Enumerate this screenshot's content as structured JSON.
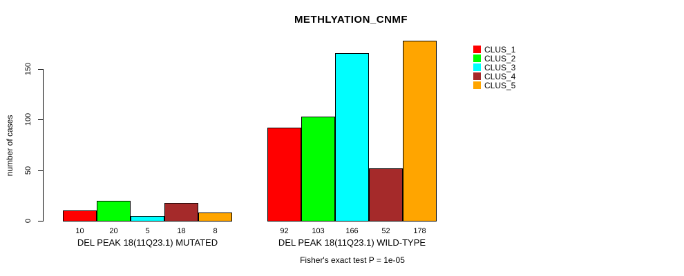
{
  "chart_data": {
    "type": "bar",
    "title": "METHLYATION_CNMF",
    "ylabel": "number of cases",
    "xlabel": "",
    "ylim": [
      0,
      178
    ],
    "yticks": [
      0,
      50,
      100,
      150
    ],
    "grid": false,
    "legend_position": "right",
    "series_names": [
      "CLUS_1",
      "CLUS_2",
      "CLUS_3",
      "CLUS_4",
      "CLUS_5"
    ],
    "series_colors": [
      "#FF0000",
      "#00FF00",
      "#00FFFF",
      "#A52A2A",
      "#FFA500"
    ],
    "groups": [
      {
        "label": "DEL PEAK 18(11Q23.1) MUTATED",
        "values": [
          10,
          20,
          5,
          18,
          8
        ]
      },
      {
        "label": "DEL PEAK 18(11Q23.1) WILD-TYPE",
        "values": [
          92,
          103,
          166,
          52,
          178
        ]
      }
    ],
    "annotation": "Fisher's exact test P = 1e-05"
  }
}
